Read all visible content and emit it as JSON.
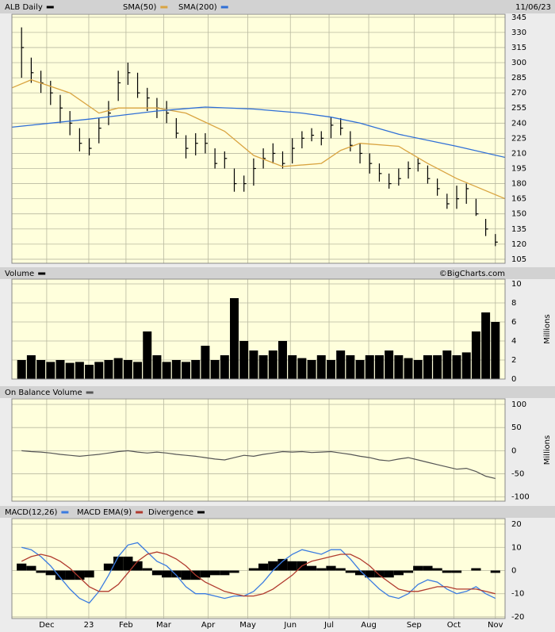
{
  "chart_data": [
    {
      "type": "hlc",
      "title": "ALB Daily",
      "date": "11/06/23",
      "color": "#000000",
      "grid": true,
      "xlim": [
        0,
        51
      ],
      "ylim": [
        101,
        348
      ],
      "yticks": [
        105,
        120,
        135,
        150,
        165,
        180,
        195,
        210,
        225,
        240,
        255,
        270,
        285,
        300,
        315,
        330,
        345
      ],
      "x": [
        1,
        2,
        3,
        4,
        5,
        6,
        7,
        8,
        9,
        10,
        11,
        12,
        13,
        14,
        15,
        16,
        17,
        18,
        19,
        20,
        21,
        22,
        23,
        24,
        25,
        26,
        27,
        28,
        29,
        30,
        31,
        32,
        33,
        34,
        35,
        36,
        37,
        38,
        39,
        40,
        41,
        42,
        43,
        44,
        45,
        46,
        47,
        48,
        49,
        50
      ],
      "high": [
        335,
        305,
        292,
        282,
        268,
        252,
        235,
        225,
        245,
        262,
        292,
        300,
        290,
        275,
        265,
        262,
        245,
        228,
        230,
        230,
        215,
        212,
        195,
        188,
        205,
        215,
        220,
        212,
        225,
        232,
        235,
        232,
        246,
        245,
        232,
        220,
        210,
        200,
        190,
        195,
        202,
        205,
        198,
        185,
        170,
        178,
        180,
        165,
        145,
        130
      ],
      "low": [
        285,
        280,
        270,
        258,
        240,
        228,
        212,
        208,
        220,
        238,
        262,
        278,
        265,
        252,
        245,
        240,
        225,
        205,
        208,
        210,
        195,
        195,
        172,
        172,
        178,
        195,
        200,
        195,
        200,
        215,
        222,
        218,
        225,
        228,
        212,
        200,
        190,
        182,
        175,
        178,
        185,
        192,
        180,
        168,
        155,
        155,
        160,
        148,
        128,
        118
      ],
      "close": [
        315,
        290,
        280,
        270,
        255,
        240,
        220,
        215,
        235,
        250,
        280,
        290,
        270,
        265,
        255,
        250,
        230,
        215,
        220,
        220,
        200,
        205,
        180,
        180,
        195,
        205,
        210,
        200,
        215,
        225,
        228,
        225,
        238,
        235,
        218,
        210,
        200,
        190,
        180,
        185,
        195,
        200,
        185,
        175,
        160,
        165,
        175,
        150,
        135,
        122
      ],
      "series": [
        {
          "name": "SMA(50)",
          "color": "#d9a441",
          "x": [
            0,
            2,
            6,
            9,
            11,
            15,
            18,
            22,
            25,
            28,
            32,
            34,
            36,
            40,
            43,
            46,
            51
          ],
          "values": [
            275,
            283,
            270,
            250,
            255,
            255,
            250,
            232,
            208,
            197,
            200,
            213,
            220,
            217,
            200,
            185,
            165
          ]
        },
        {
          "name": "SMA(200)",
          "color": "#2f6fd6",
          "x": [
            0,
            8,
            15,
            20,
            25,
            30,
            33,
            36,
            40,
            46,
            51
          ],
          "values": [
            236,
            244,
            252,
            256,
            254,
            250,
            246,
            240,
            229,
            217,
            206
          ]
        }
      ]
    },
    {
      "type": "bar",
      "title": "Volume",
      "credit": "©BigCharts.com",
      "ylabel": "Millions",
      "color": "#000000",
      "grid": true,
      "xlim": [
        0,
        51
      ],
      "ylim": [
        0,
        10.5
      ],
      "yticks": [
        0,
        2,
        4,
        6,
        8,
        10
      ],
      "x": [
        1,
        2,
        3,
        4,
        5,
        6,
        7,
        8,
        9,
        10,
        11,
        12,
        13,
        14,
        15,
        16,
        17,
        18,
        19,
        20,
        21,
        22,
        23,
        24,
        25,
        26,
        27,
        28,
        29,
        30,
        31,
        32,
        33,
        34,
        35,
        36,
        37,
        38,
        39,
        40,
        41,
        42,
        43,
        44,
        45,
        46,
        47,
        48,
        49,
        50
      ],
      "values": [
        2,
        2.5,
        2,
        1.8,
        2,
        1.7,
        1.8,
        1.5,
        1.8,
        2,
        2.2,
        2,
        1.8,
        5,
        2.5,
        1.8,
        2,
        1.8,
        2,
        3.5,
        2,
        2.5,
        8.5,
        4,
        3,
        2.5,
        3,
        4,
        2.5,
        2.2,
        2,
        2.5,
        2,
        3,
        2.5,
        2,
        2.5,
        2.5,
        3,
        2.5,
        2.2,
        2,
        2.5,
        2.5,
        3,
        2.5,
        2.8,
        5,
        7,
        6
      ]
    },
    {
      "type": "line",
      "title": "On Balance Volume",
      "ylabel": "Millions",
      "color": "#555555",
      "grid": true,
      "xlim": [
        0,
        51
      ],
      "ylim": [
        -109,
        112
      ],
      "yticks": [
        -100,
        -50,
        0,
        50,
        100
      ],
      "x": [
        1,
        2,
        3,
        4,
        5,
        6,
        7,
        8,
        9,
        10,
        11,
        12,
        13,
        14,
        15,
        16,
        17,
        18,
        19,
        20,
        21,
        22,
        23,
        24,
        25,
        26,
        27,
        28,
        29,
        30,
        31,
        32,
        33,
        34,
        35,
        36,
        37,
        38,
        39,
        40,
        41,
        42,
        43,
        44,
        45,
        46,
        47,
        48,
        49,
        50
      ],
      "values": [
        0,
        -2,
        -3,
        -5,
        -8,
        -10,
        -12,
        -10,
        -8,
        -5,
        -2,
        0,
        -3,
        -5,
        -3,
        -5,
        -8,
        -10,
        -12,
        -15,
        -18,
        -20,
        -15,
        -10,
        -12,
        -8,
        -5,
        -2,
        -3,
        -2,
        -4,
        -3,
        -2,
        -5,
        -8,
        -12,
        -15,
        -20,
        -22,
        -18,
        -15,
        -20,
        -25,
        -30,
        -35,
        -40,
        -38,
        -45,
        -55,
        -60
      ]
    },
    {
      "type": "macd",
      "grid": true,
      "xlim": [
        0,
        51
      ],
      "ylim": [
        -20.7,
        22.4
      ],
      "yticks": [
        -20,
        -10,
        0,
        10,
        20
      ],
      "xticks": [
        {
          "value": 3.6,
          "label": "Dec"
        },
        {
          "value": 7.95,
          "label": "23"
        },
        {
          "value": 11.8,
          "label": "Feb"
        },
        {
          "value": 15.7,
          "label": "Mar"
        },
        {
          "value": 20.3,
          "label": "Apr"
        },
        {
          "value": 24.4,
          "label": "May"
        },
        {
          "value": 28.8,
          "label": "Jun"
        },
        {
          "value": 32.8,
          "label": "Jul"
        },
        {
          "value": 36.9,
          "label": "Aug"
        },
        {
          "value": 41.6,
          "label": "Sep"
        },
        {
          "value": 45.7,
          "label": "Oct"
        },
        {
          "value": 50.0,
          "label": "Nov"
        }
      ],
      "x": [
        1,
        2,
        3,
        4,
        5,
        6,
        7,
        8,
        9,
        10,
        11,
        12,
        13,
        14,
        15,
        16,
        17,
        18,
        19,
        20,
        21,
        22,
        23,
        24,
        25,
        26,
        27,
        28,
        29,
        30,
        31,
        32,
        33,
        34,
        35,
        36,
        37,
        38,
        39,
        40,
        41,
        42,
        43,
        44,
        45,
        46,
        47,
        48,
        49,
        50
      ],
      "series": [
        {
          "name": "MACD(12,26)",
          "color": "#3a7be0",
          "style": "line",
          "values": [
            10,
            9,
            6,
            2,
            -3,
            -8,
            -12,
            -14,
            -9,
            -2,
            6,
            11,
            12,
            8,
            4,
            2,
            -2,
            -7,
            -10,
            -10,
            -11,
            -12,
            -11,
            -11,
            -9,
            -5,
            0,
            4,
            7,
            9,
            8,
            7,
            9,
            9,
            5,
            0,
            -4,
            -8,
            -11,
            -12,
            -10,
            -6,
            -4,
            -5,
            -8,
            -10,
            -9,
            -7,
            -10,
            -12
          ]
        },
        {
          "name": "MACD EMA(9)",
          "color": "#b03a2e",
          "style": "line",
          "values": [
            4,
            6,
            7,
            6,
            4,
            1,
            -3,
            -7,
            -9,
            -9,
            -6,
            -1,
            4,
            7,
            8,
            7,
            5,
            2,
            -2,
            -5,
            -7,
            -9,
            -10,
            -11,
            -11,
            -10,
            -8,
            -5,
            -2,
            2,
            4,
            5,
            6,
            7,
            7,
            5,
            2,
            -2,
            -5,
            -8,
            -9,
            -9,
            -8,
            -7,
            -7,
            -8,
            -8,
            -8,
            -9,
            -10
          ]
        },
        {
          "name": "Divergence",
          "color": "#000000",
          "style": "bar",
          "values": [
            3,
            2,
            -1,
            -2,
            -4,
            -4,
            -4,
            -3,
            0,
            3,
            6,
            6,
            4,
            1,
            -2,
            -3,
            -3,
            -4,
            -4,
            -3,
            -2,
            -2,
            -1,
            0,
            1,
            3,
            4,
            5,
            4,
            4,
            2,
            1,
            2,
            1,
            -1,
            -2,
            -3,
            -3,
            -3,
            -2,
            -1,
            2,
            2,
            1,
            -1,
            -1,
            0,
            1,
            0,
            -1
          ]
        }
      ]
    }
  ]
}
